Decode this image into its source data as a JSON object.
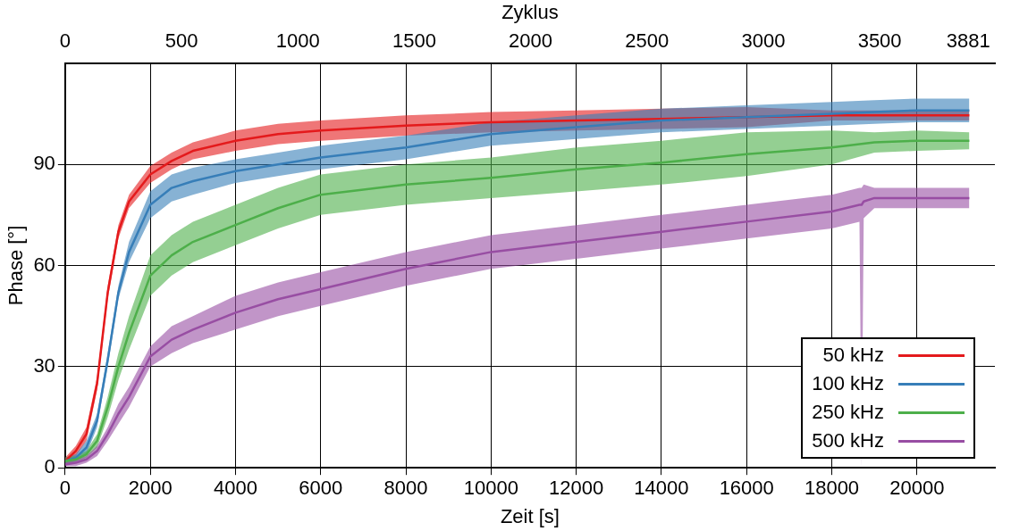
{
  "chart_data": {
    "type": "line",
    "xlabel": "Zeit [s]",
    "x2label": "Zyklus",
    "ylabel": "Phase [°]",
    "xlim": [
      0,
      21830
    ],
    "xticks": [
      0,
      2000,
      4000,
      6000,
      8000,
      10000,
      12000,
      14000,
      16000,
      18000,
      20000
    ],
    "x2lim": [
      0,
      3995
    ],
    "x2ticks": [
      0,
      500,
      1000,
      1500,
      2000,
      2500,
      3000,
      3500,
      3881
    ],
    "ylim": [
      0,
      120
    ],
    "yticks": [
      0,
      30,
      60,
      90
    ],
    "grid": true,
    "legend": "bottom right",
    "marker": "none",
    "x": [
      0,
      250,
      500,
      750,
      1000,
      1250,
      1500,
      2000,
      2500,
      3000,
      4000,
      5000,
      6000,
      8000,
      10000,
      12000,
      14000,
      16000,
      18000,
      19000,
      20000,
      21230
    ],
    "series": [
      {
        "name": "50 kHz",
        "color": "#e41a1c",
        "values": [
          2,
          5,
          10,
          25,
          52,
          70,
          79,
          87,
          91,
          94,
          97,
          99,
          100,
          101.5,
          102.5,
          103,
          103.5,
          104,
          104.5,
          104.5,
          104.5,
          104.5
        ],
        "lower": [
          1,
          3.5,
          8,
          23,
          50,
          68,
          77,
          84.5,
          88.5,
          91.5,
          94,
          96,
          97,
          98.5,
          99.5,
          100,
          100.5,
          101,
          103,
          103,
          103,
          103
        ],
        "upper": [
          3,
          6.5,
          12,
          27,
          54,
          72,
          81,
          89.5,
          93.5,
          96.5,
          100,
          102,
          103,
          104.5,
          105.5,
          106,
          106.5,
          107,
          106,
          106,
          106,
          106
        ]
      },
      {
        "name": "100 kHz",
        "color": "#377eb8",
        "values": [
          2,
          3,
          6,
          14,
          32,
          52,
          64,
          78,
          83,
          85,
          88,
          90,
          92,
          95,
          99,
          101,
          103,
          104,
          105,
          105.5,
          106,
          106
        ],
        "lower": [
          1,
          2,
          4,
          12,
          30,
          50,
          61,
          74,
          79,
          81,
          84.5,
          86.5,
          88.5,
          91.5,
          95.5,
          97.5,
          99.5,
          100.5,
          101.5,
          102,
          102.5,
          102.5
        ],
        "upper": [
          3,
          4,
          8,
          16,
          34,
          54,
          67,
          82,
          87,
          89,
          91.5,
          93.5,
          95.5,
          98.5,
          102.5,
          104.5,
          106.5,
          107.5,
          108.5,
          109,
          109.5,
          109.5
        ]
      },
      {
        "name": "250 kHz",
        "color": "#4daf4a",
        "values": [
          2,
          2.5,
          4,
          8,
          18,
          30,
          40,
          57,
          63,
          67,
          72,
          77,
          81,
          84,
          86,
          88.5,
          90.5,
          93,
          95,
          96.5,
          97,
          97
        ],
        "lower": [
          1,
          1.5,
          3,
          6,
          15,
          26,
          35,
          51,
          57,
          61,
          66,
          71,
          75,
          78,
          80,
          82,
          84,
          86.5,
          90,
          93.5,
          94,
          94.5
        ],
        "upper": [
          3,
          3.5,
          5,
          10,
          21,
          34,
          45,
          63,
          69,
          73,
          78,
          83,
          87,
          90,
          92,
          95,
          97,
          99.5,
          100,
          99.5,
          100,
          99.5
        ]
      },
      {
        "name": "500 kHz",
        "color": "#984ea3",
        "x": [
          0,
          250,
          500,
          750,
          1000,
          1250,
          1500,
          2000,
          2500,
          3000,
          4000,
          5000,
          6000,
          8000,
          10000,
          12000,
          14000,
          16000,
          18000,
          18650,
          18700,
          18750,
          19000,
          20000,
          21230
        ],
        "values": [
          1,
          1.5,
          2.5,
          5,
          10,
          16,
          21,
          33,
          38,
          41,
          46,
          50,
          53,
          59,
          64,
          67,
          70,
          73,
          76,
          78,
          78,
          79,
          80,
          80,
          80
        ],
        "lower": [
          0.5,
          0.5,
          1.5,
          3.5,
          8,
          13,
          18,
          30,
          34,
          37,
          41,
          45,
          48,
          54,
          59,
          62,
          65,
          68,
          71,
          73,
          0,
          74,
          77,
          77,
          77
        ],
        "upper": [
          1.5,
          2.5,
          3.5,
          6.5,
          12,
          19,
          24,
          36,
          42,
          45,
          51,
          55,
          58,
          64,
          69,
          72,
          75,
          78,
          81,
          83,
          83,
          84,
          83,
          83,
          83
        ]
      }
    ]
  }
}
